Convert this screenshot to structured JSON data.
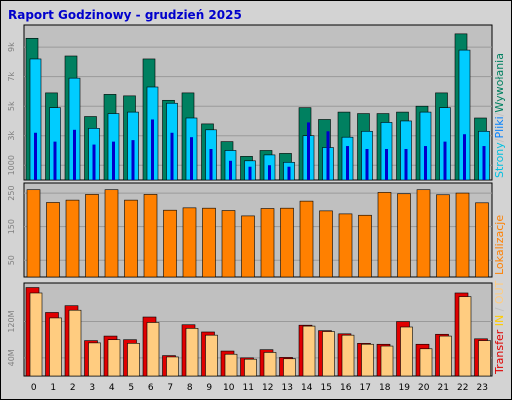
{
  "title": "Raport Godzinowy -  grudzień 2025",
  "chart_data": [
    {
      "type": "bar",
      "panel": "top",
      "categories": [
        "0",
        "1",
        "2",
        "3",
        "4",
        "5",
        "6",
        "7",
        "8",
        "9",
        "10",
        "11",
        "12",
        "13",
        "14",
        "15",
        "16",
        "17",
        "18",
        "19",
        "20",
        "21",
        "22",
        "23"
      ],
      "series": [
        {
          "name": "Strony",
          "color": "#0000cc",
          "values": [
            3200,
            2600,
            3400,
            2400,
            2600,
            2700,
            4100,
            3200,
            2900,
            2100,
            1300,
            900,
            1000,
            900,
            3900,
            3300,
            2300,
            2100,
            2100,
            2100,
            2300,
            2600,
            3100,
            2300
          ]
        },
        {
          "name": "Pliki",
          "color": "#00ccff",
          "values": [
            8200,
            4900,
            6900,
            3500,
            4500,
            4600,
            6300,
            5200,
            4200,
            3400,
            2000,
            1300,
            1700,
            1200,
            3000,
            2200,
            2900,
            3300,
            3900,
            4000,
            4600,
            4900,
            8800,
            3300
          ]
        },
        {
          "name": "Wywołania",
          "color": "#008060",
          "values": [
            9600,
            5900,
            8400,
            4300,
            5800,
            5700,
            8200,
            5400,
            5900,
            3800,
            2600,
            1600,
            2000,
            1800,
            4900,
            4100,
            4600,
            4500,
            4500,
            4600,
            5000,
            5900,
            9900,
            4200
          ]
        }
      ],
      "y_ticks": [
        "1000",
        "3k",
        "5k",
        "7k",
        "9k"
      ],
      "ylim": [
        0,
        10500
      ],
      "side_label_parts": [
        {
          "text": "Strony",
          "color": "#00c0e0"
        },
        {
          "text": "/",
          "color": "#c0c0c0"
        },
        {
          "text": "Pliki",
          "color": "#0080ff"
        },
        {
          "text": "/",
          "color": "#c0c0c0"
        },
        {
          "text": "Wywołania",
          "color": "#008060"
        }
      ]
    },
    {
      "type": "bar",
      "panel": "middle",
      "categories": [
        "0",
        "1",
        "2",
        "3",
        "4",
        "5",
        "6",
        "7",
        "8",
        "9",
        "10",
        "11",
        "12",
        "13",
        "14",
        "15",
        "16",
        "17",
        "18",
        "19",
        "20",
        "21",
        "22",
        "23"
      ],
      "series": [
        {
          "name": "Lokalizacje",
          "color": "#ff8000",
          "values": [
            260,
            222,
            229,
            246,
            260,
            229,
            246,
            199,
            206,
            205,
            198,
            182,
            204,
            205,
            226,
            197,
            188,
            184,
            252,
            248,
            260,
            245,
            250,
            221
          ]
        }
      ],
      "y_ticks": [
        "50",
        "150",
        "250"
      ],
      "ylim": [
        0,
        280
      ],
      "side_label_parts": [
        {
          "text": "Lokalizacje",
          "color": "#ff8000"
        }
      ]
    },
    {
      "type": "bar",
      "panel": "bottom",
      "categories": [
        "0",
        "1",
        "2",
        "3",
        "4",
        "5",
        "6",
        "7",
        "8",
        "9",
        "10",
        "11",
        "12",
        "13",
        "14",
        "15",
        "16",
        "17",
        "18",
        "19",
        "20",
        "21",
        "22",
        "23"
      ],
      "series": [
        {
          "name": "Transfer",
          "color": "#e00000",
          "values": [
            195,
            140,
            155,
            78,
            88,
            80,
            130,
            45,
            113,
            97,
            55,
            40,
            58,
            41,
            112,
            100,
            93,
            72,
            70,
            120,
            70,
            92,
            183,
            82
          ]
        },
        {
          "name": "IN",
          "color": "#ffcc00",
          "values": [
            0,
            0,
            0,
            0,
            0,
            0,
            0,
            0,
            0,
            0,
            0,
            0,
            0,
            0,
            0,
            0,
            0,
            0,
            0,
            0,
            0,
            0,
            0,
            0
          ]
        },
        {
          "name": "OUT",
          "color": "#ffcc80",
          "values": [
            183,
            128,
            145,
            73,
            80,
            72,
            118,
            42,
            105,
            90,
            48,
            37,
            52,
            38,
            110,
            98,
            90,
            70,
            66,
            108,
            60,
            88,
            175,
            78
          ]
        }
      ],
      "y_ticks": [
        "40M",
        "120M"
      ],
      "ylim": [
        0,
        205
      ],
      "side_label_parts": [
        {
          "text": "Transfer",
          "color": "#e00000"
        },
        {
          "text": "  ",
          "color": "#c0c0c0"
        },
        {
          "text": "IN",
          "color": "#ffcc00"
        },
        {
          "text": " / ",
          "color": "#c0c0c0"
        },
        {
          "text": "OUT",
          "color": "#ffcc80"
        }
      ]
    }
  ]
}
